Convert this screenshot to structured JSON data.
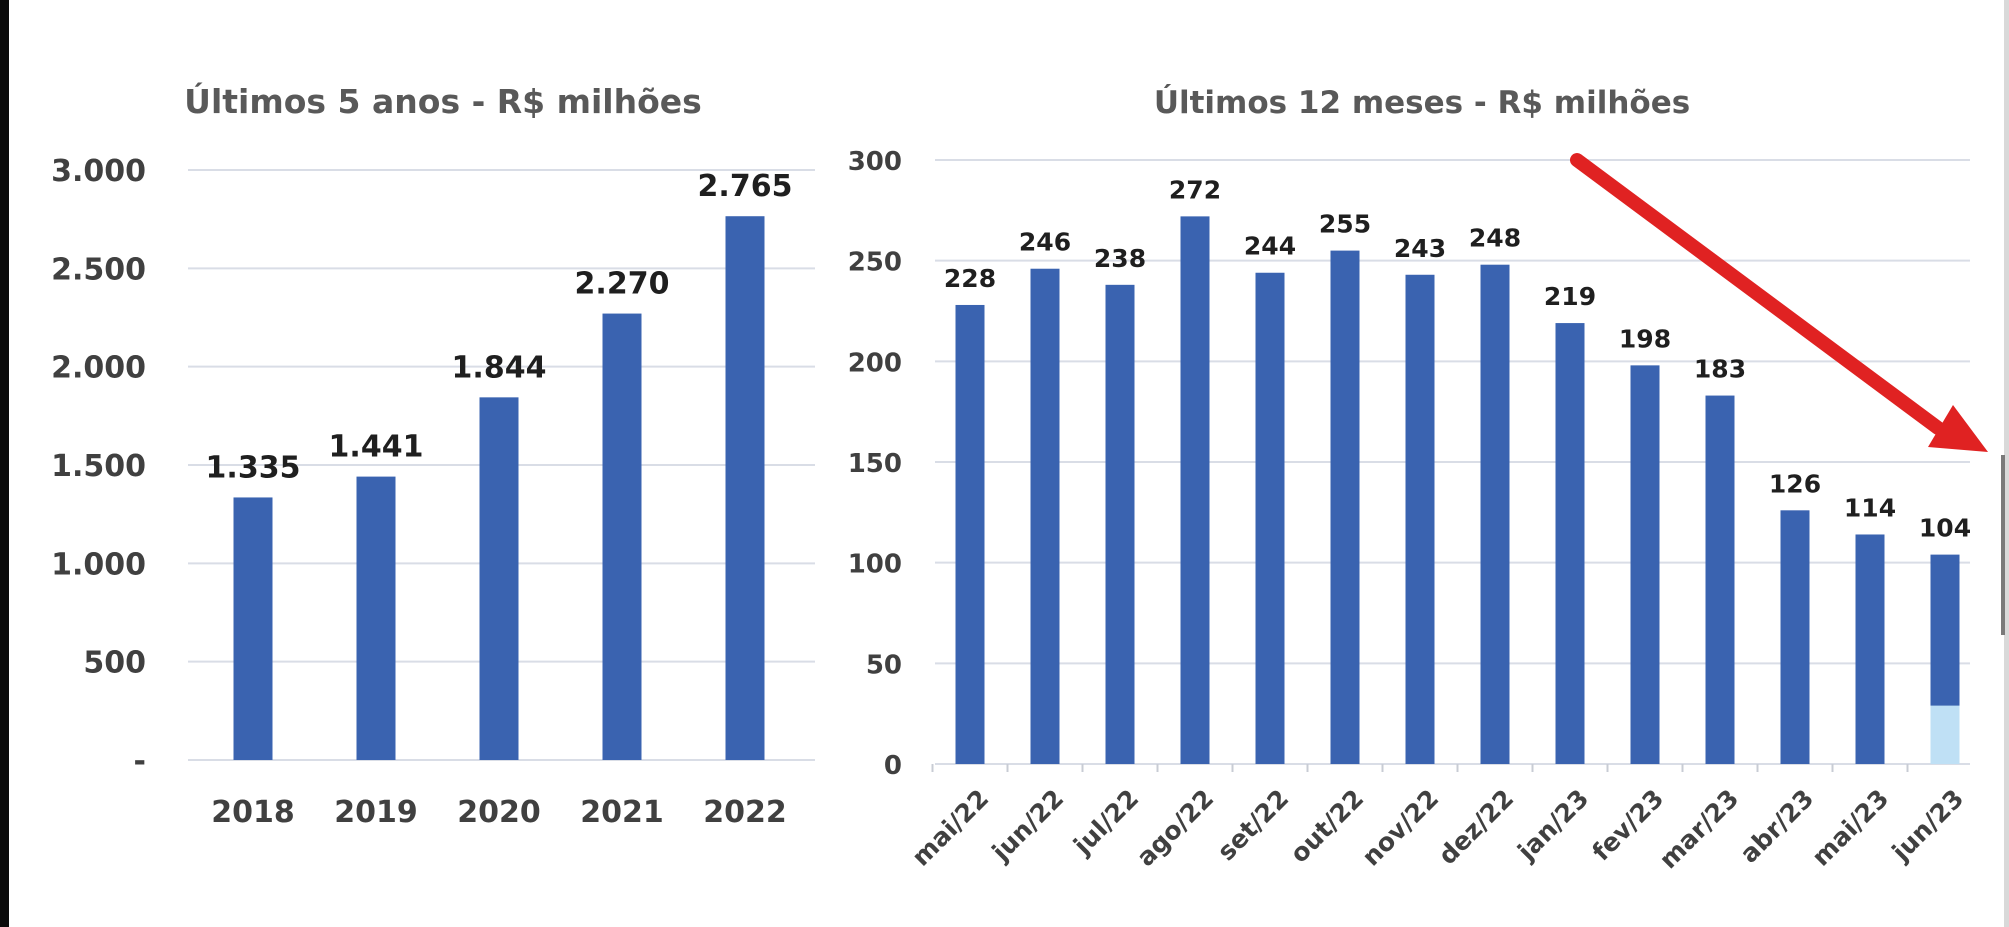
{
  "chart_data": [
    {
      "type": "bar",
      "title": "Últimos 5 anos - R$ milhões",
      "xlabel": "",
      "ylabel": "",
      "categories": [
        "2018",
        "2019",
        "2020",
        "2021",
        "2022"
      ],
      "values": [
        1335,
        1441,
        1844,
        2270,
        2765
      ],
      "value_labels": [
        "1.335",
        "1.441",
        "1.844",
        "2.270",
        "2.765"
      ],
      "ylim": [
        0,
        3000
      ],
      "yticks": [
        0,
        500,
        1000,
        1500,
        2000,
        2500,
        3000
      ],
      "ytick_labels": [
        "-",
        "500",
        "1.000",
        "1.500",
        "2.000",
        "2.500",
        "3.000"
      ],
      "grid": true,
      "bar_color": "#3a63b0"
    },
    {
      "type": "bar",
      "title": "Últimos 12 meses - R$ milhões",
      "xlabel": "",
      "ylabel": "",
      "categories": [
        "mai/22",
        "jun/22",
        "jul/22",
        "ago/22",
        "set/22",
        "out/22",
        "nov/22",
        "dez/22",
        "jan/23",
        "fev/23",
        "mar/23",
        "abr/23",
        "mai/23",
        "jun/23"
      ],
      "values": [
        228,
        246,
        238,
        272,
        244,
        255,
        243,
        248,
        219,
        198,
        183,
        126,
        114,
        104
      ],
      "value_labels": [
        "228",
        "246",
        "238",
        "272",
        "244",
        "255",
        "243",
        "248",
        "219",
        "198",
        "183",
        "126",
        "114",
        "104"
      ],
      "ylim": [
        0,
        300
      ],
      "yticks": [
        0,
        50,
        100,
        150,
        200,
        250,
        300
      ],
      "ytick_labels": [
        "0",
        "50",
        "100",
        "150",
        "200",
        "250",
        "300"
      ],
      "grid": true,
      "bar_color": "#3a63b0",
      "last_bar_light_portion": 29,
      "light_color": "#bfe0f5",
      "annotation": "red-downward-trend-arrow",
      "arrow_color": "#e02222"
    }
  ]
}
